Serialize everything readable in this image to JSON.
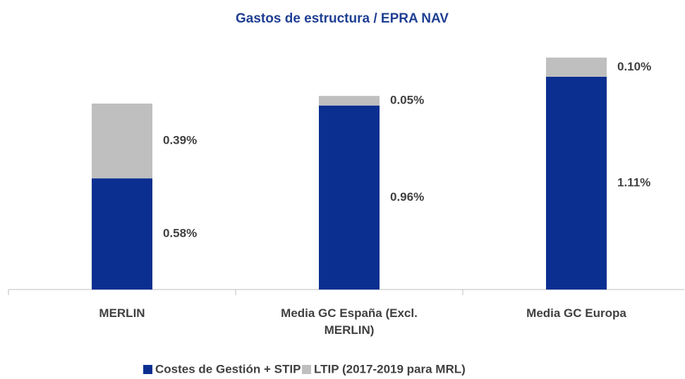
{
  "chart_data": {
    "type": "stacked_bar",
    "title": "Gastos de estructura / EPRA NAV",
    "categories": [
      "MERLIN",
      "Media GC España (Excl. MERLIN)",
      "Media GC Europa"
    ],
    "series": [
      {
        "name": "Costes de Gestión + STIP",
        "color": "#0b2f91",
        "values": [
          0.58,
          0.96,
          1.11
        ],
        "value_labels": [
          "0.58%",
          "0.96%",
          "1.11%"
        ]
      },
      {
        "name": "LTIP (2017-2019 para MRL)",
        "color": "#bfbfbf",
        "values": [
          0.39,
          0.05,
          0.1
        ],
        "value_labels": [
          "0.39%",
          "0.05%",
          "0.10%"
        ]
      }
    ],
    "ylim": [
      0,
      1.4
    ],
    "legend": "bottom"
  }
}
